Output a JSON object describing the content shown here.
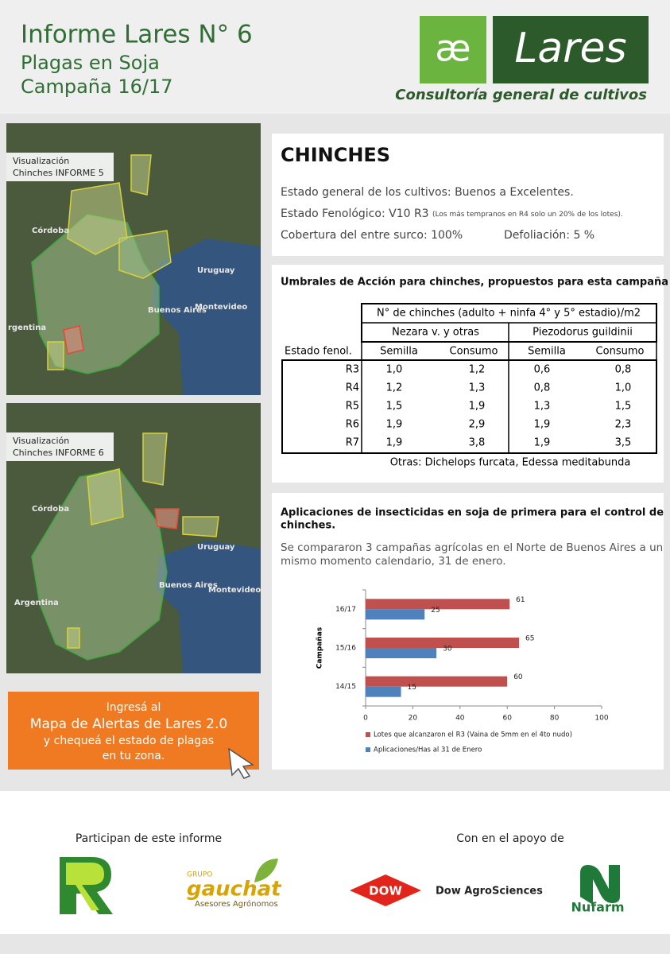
{
  "header": {
    "title": "Informe Lares N° 6",
    "subtitle": "Plagas en Soja",
    "campaign": "Campaña 16/17"
  },
  "logo": {
    "symbol": "æ",
    "name": "Lares",
    "tagline": "Consultoría general de cultivos"
  },
  "maps": [
    {
      "label_lines": [
        "Visualización",
        "Chinches INFORME 5"
      ],
      "places": [
        "Córdoba",
        "Uruguay",
        "Buenos Aires",
        "rgentina",
        "Montevideo"
      ]
    },
    {
      "label_lines": [
        "Visualización",
        "Chinches INFORME 6"
      ],
      "places": [
        "Córdoba",
        "Uruguay",
        "Buenos Aires",
        "Argentina",
        "Montevideo"
      ]
    }
  ],
  "cta": {
    "lines": [
      "Ingresá al",
      "Mapa de Alertas de Lares 2.0",
      "y chequeá el estado de plagas",
      "en tu zona."
    ]
  },
  "chinches": {
    "title": "CHINCHES",
    "estado": "Estado general de los cultivos: Buenos a Excelentes.",
    "fenologico": "Estado Fenológico:  V10 R3",
    "fenologico_note": "(Los más tempranos en R4 solo un 20% de los lotes).",
    "cobertura": "Cobertura del entre surco: 100%",
    "defoliacion": "Defoliación: 5 %"
  },
  "umbrales": {
    "title": "Umbrales de Acción para chinches, propuestos para esta campaña",
    "header": "N° de chinches (adulto + ninfa 4° y 5° estadio)/m2",
    "groups": [
      "Nezara v. y otras",
      "Piezodorus guildinii"
    ],
    "row_header": "Estado fenol.",
    "subheaders": [
      "Semilla",
      "Consumo",
      "Semilla",
      "Consumo"
    ],
    "rows": [
      [
        "R3",
        "1,0",
        "1,2",
        "0,6",
        "0,8"
      ],
      [
        "R4",
        "1,2",
        "1,3",
        "0,8",
        "1,0"
      ],
      [
        "R5",
        "1,5",
        "1,9",
        "1,3",
        "1,5"
      ],
      [
        "R6",
        "1,9",
        "2,9",
        "1,9",
        "2,3"
      ],
      [
        "R7",
        "1,9",
        "3,8",
        "1,9",
        "3,5"
      ]
    ],
    "note": "Otras: Dichelops furcata, Edessa meditabunda"
  },
  "aplicaciones": {
    "title_lines": [
      "Aplicaciones de insecticidas en soja de primera para el control de",
      "chinches."
    ],
    "text_lines": [
      "Se compararon 3 campañas agrícolas en el Norte de Buenos Aires a un",
      "mismo momento calendario, 31 de enero."
    ]
  },
  "chart_data": {
    "type": "bar",
    "orientation": "horizontal",
    "y_label": "Campañas",
    "categories": [
      "16/17",
      "15/16",
      "14/15"
    ],
    "series": [
      {
        "name": "Lotes que alcanzaron el R3 (Vaina de 5mm en el 4to nudo)",
        "color": "#c0504d",
        "values": [
          61,
          65,
          60
        ]
      },
      {
        "name": "Aplicaciones/Has al 31 de Enero",
        "color": "#4f81bd",
        "values": [
          25,
          30,
          15
        ]
      }
    ],
    "xlim": [
      0,
      100
    ],
    "xticks": [
      0,
      20,
      40,
      60,
      80,
      100
    ],
    "legend": "bottom",
    "data_labels": true
  },
  "footer": {
    "participan": "Participan de este informe",
    "apoyo": "Con en el apoyo de",
    "gauchat": {
      "group": "GRUPO",
      "name": "gauchat",
      "sub": "Asesores Agrónomos"
    },
    "dow": "DOW",
    "dow_agro": "Dow AgroSciences",
    "nufarm": "Nufarm"
  }
}
